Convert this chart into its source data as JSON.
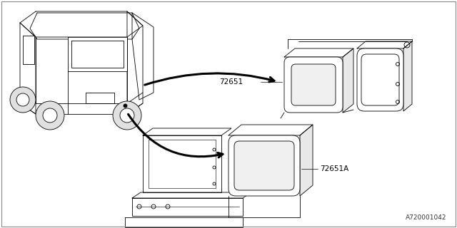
{
  "bg_color": "#ffffff",
  "line_color": "#000000",
  "label_72651": "72651",
  "label_72651A": "72651A",
  "diagram_id": "A720001042",
  "fig_width": 6.4,
  "fig_height": 3.2,
  "dpi": 100,
  "lw_car": 0.6,
  "lw_part": 0.6,
  "lw_arrow": 2.2
}
